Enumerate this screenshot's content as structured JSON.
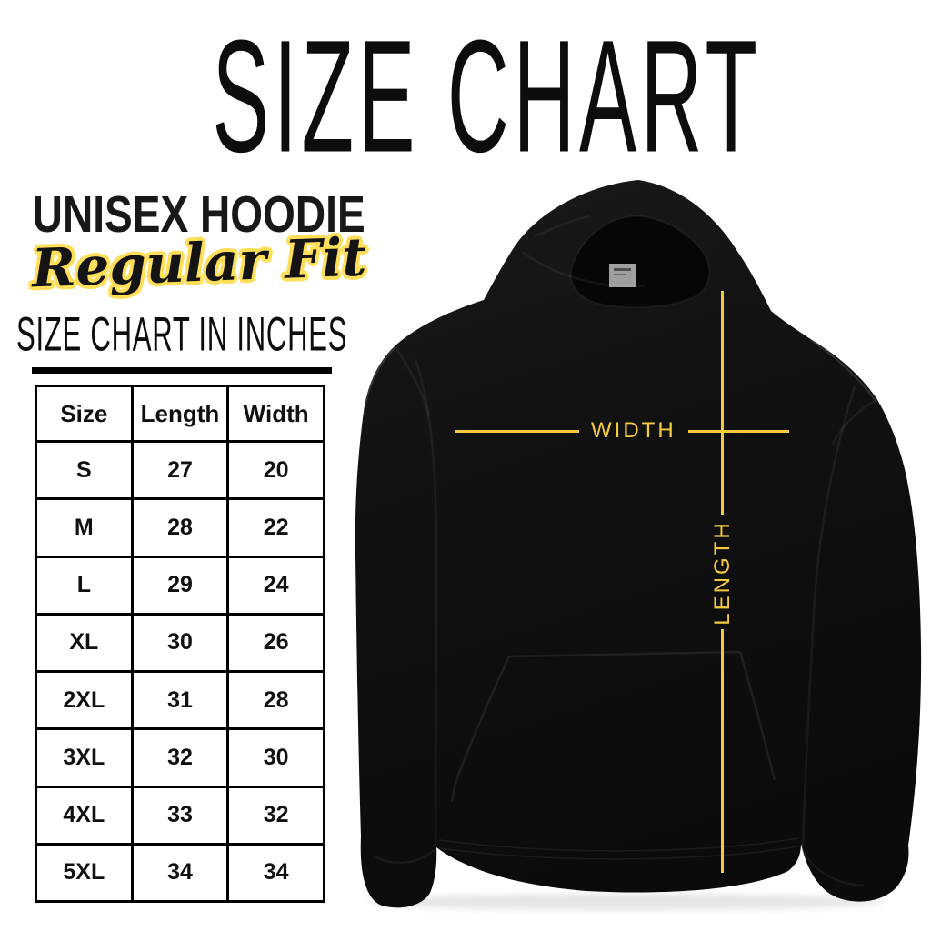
{
  "page": {
    "title": "SIZE CHART"
  },
  "product": {
    "name": "UNISEX HOODIE",
    "fit_label": "Regular Fit"
  },
  "size_table": {
    "heading": "SIZE CHART IN INCHES",
    "columns": [
      "Size",
      "Length",
      "Width"
    ],
    "rows": [
      [
        "S",
        "27",
        "20"
      ],
      [
        "M",
        "28",
        "22"
      ],
      [
        "L",
        "29",
        "24"
      ],
      [
        "XL",
        "30",
        "26"
      ],
      [
        "2XL",
        "31",
        "28"
      ],
      [
        "3XL",
        "32",
        "30"
      ],
      [
        "4XL",
        "33",
        "32"
      ],
      [
        "5XL",
        "34",
        "34"
      ]
    ]
  },
  "hoodie_diagram": {
    "width_label": "WIDTH",
    "length_label": "LENGTH"
  },
  "colors": {
    "accent_yellow": "#F4CB40",
    "script_outline_yellow": "#FFDE59",
    "ink_black": "#111111",
    "hoodie_black": "#101010",
    "background": "#FFFFFF"
  },
  "chart_data": {
    "type": "table",
    "title": "SIZE CHART",
    "subtitle": "UNISEX HOODIE — Regular Fit",
    "units": "inches",
    "columns": [
      "Size",
      "Length",
      "Width"
    ],
    "rows": [
      [
        "S",
        27,
        20
      ],
      [
        "M",
        28,
        22
      ],
      [
        "L",
        29,
        24
      ],
      [
        "XL",
        30,
        26
      ],
      [
        "2XL",
        31,
        28
      ],
      [
        "3XL",
        32,
        30
      ],
      [
        "4XL",
        33,
        32
      ],
      [
        "5XL",
        34,
        34
      ]
    ],
    "annotations": [
      "WIDTH",
      "LENGTH"
    ]
  }
}
